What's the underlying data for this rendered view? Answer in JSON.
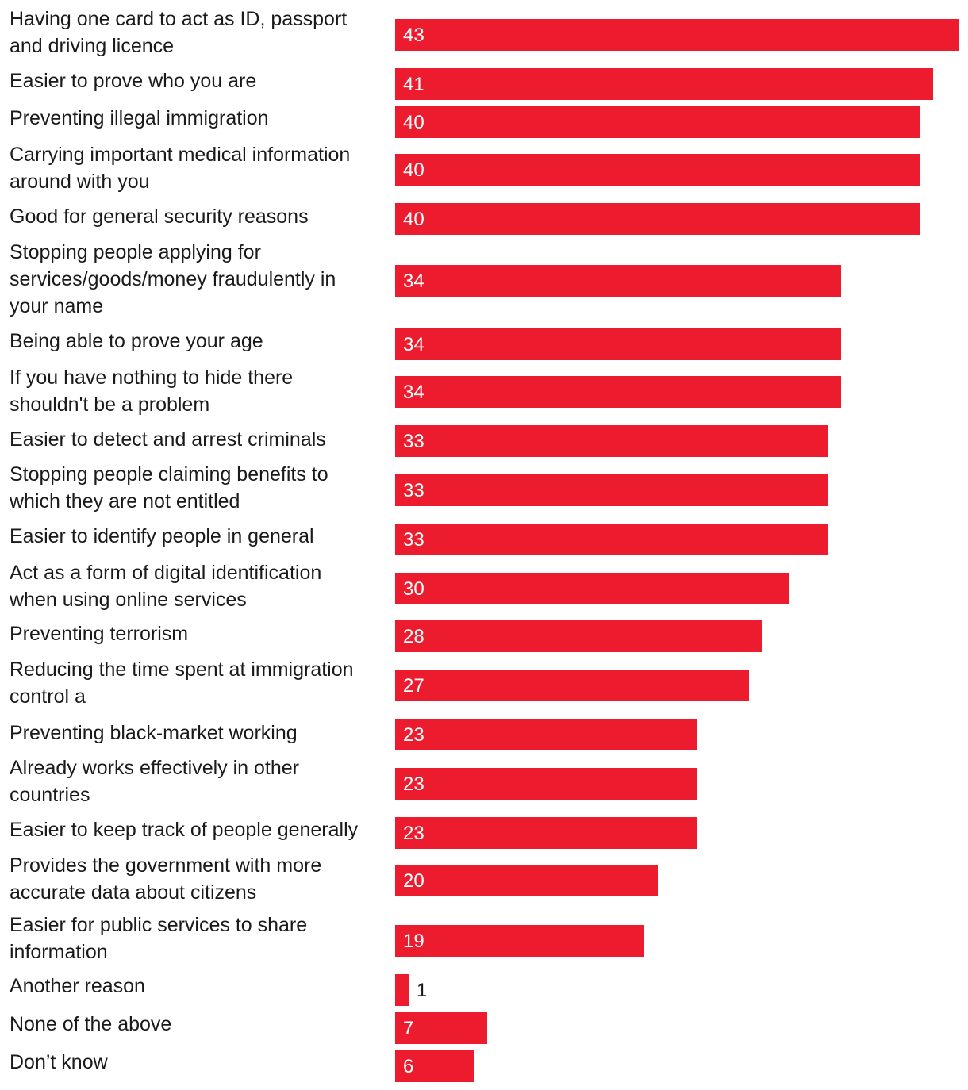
{
  "chart_data": {
    "type": "bar",
    "orientation": "horizontal",
    "title": "",
    "xlabel": "",
    "ylabel": "",
    "xlim": [
      0,
      43
    ],
    "grid": false,
    "legend": "none",
    "bar_color": "#ec1c2e",
    "categories": [
      "Having one card to act as ID, passport and driving licence",
      "Easier to prove who you are",
      "Preventing illegal immigration",
      "Carrying important medical information around with you",
      "Good for general security reasons",
      "Stopping people applying for services/goods/money fraudulently in your name",
      "Being able to prove your age",
      "If you have nothing to hide there shouldn't be a problem",
      "Easier to detect and arrest criminals",
      "Stopping people claiming benefits to which they are not entitled",
      "Easier to identify people in general",
      "Act as a form of digital identification when using online services",
      "Preventing terrorism",
      "Reducing the time spent at immigration control a",
      "Preventing black-market working",
      "Already works effectively in other countries",
      "Easier to keep track of people generally",
      "Provides the government with more accurate data about citizens",
      "Easier for public services to share information",
      "Another reason",
      "None of the above",
      "Don’t know"
    ],
    "values": [
      43,
      41,
      40,
      40,
      40,
      34,
      34,
      34,
      33,
      33,
      33,
      30,
      28,
      27,
      23,
      23,
      23,
      20,
      19,
      1,
      7,
      6
    ]
  }
}
